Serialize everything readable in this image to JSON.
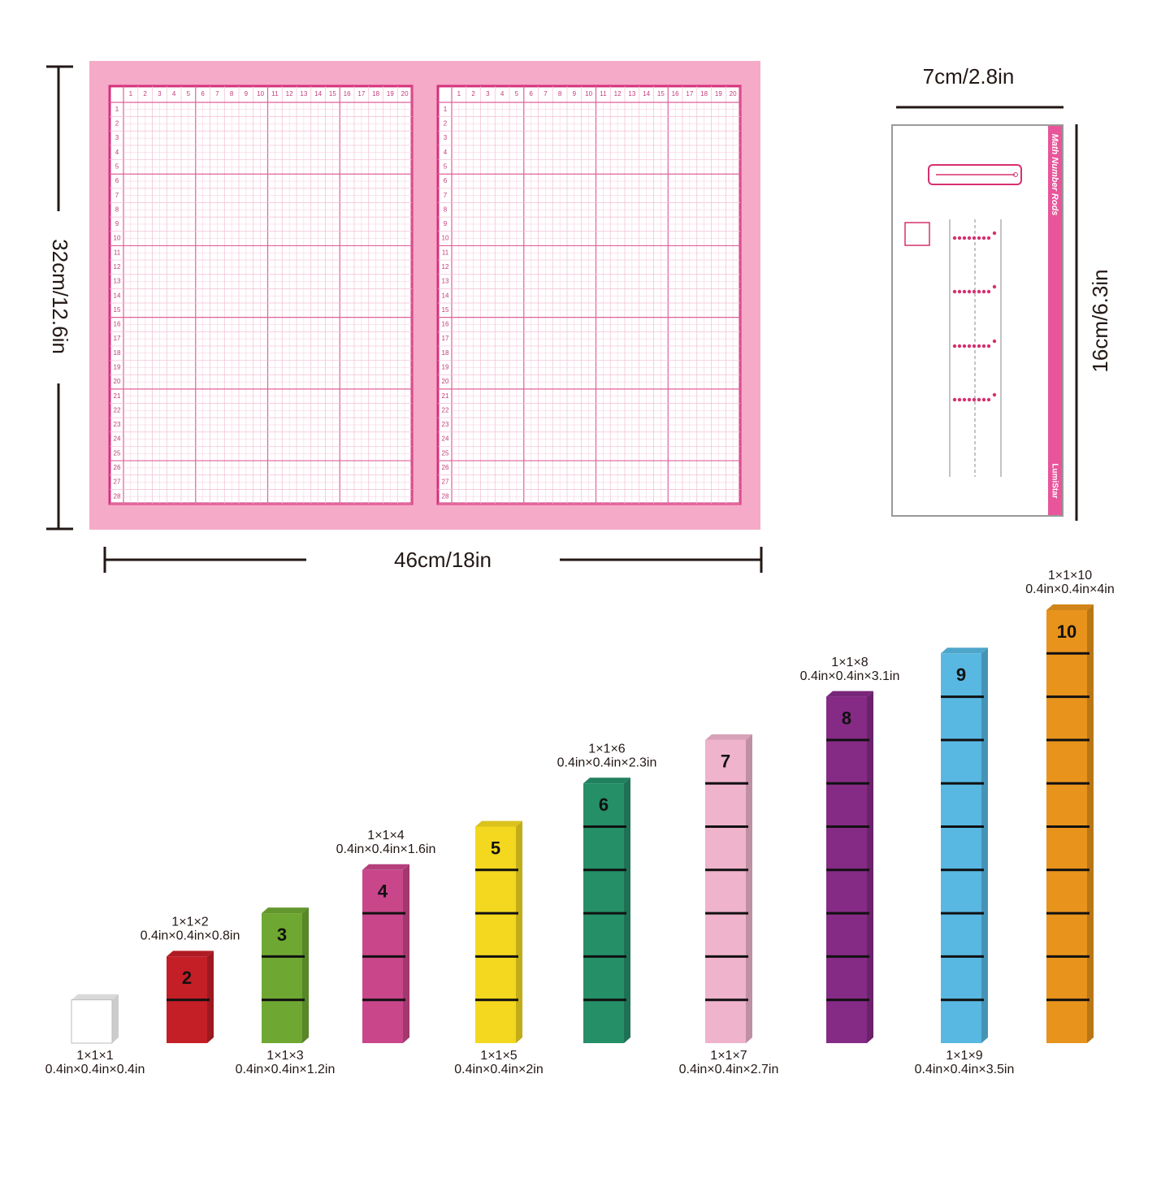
{
  "mat": {
    "width_label": "46cm/18in",
    "height_label": "32cm/12.6in",
    "column_numbers": [
      1,
      2,
      3,
      4,
      5,
      6,
      7,
      8,
      9,
      10,
      11,
      12,
      13,
      14,
      15,
      16,
      17,
      18,
      19,
      20
    ],
    "row_numbers": [
      1,
      2,
      3,
      4,
      5,
      6,
      7,
      8,
      9,
      10,
      11,
      12,
      13,
      14,
      15,
      16,
      17,
      18,
      19,
      20,
      21,
      22,
      23,
      24,
      25,
      26,
      27,
      28
    ]
  },
  "card": {
    "width_label": "7cm/2.8in",
    "height_label": "16cm/6.3in",
    "title": "Math Number Rods",
    "brand": "LumiStar"
  },
  "rods": [
    {
      "units": "1×1×1",
      "size": "0.4in×0.4in×0.4in",
      "color": "#ffffff"
    },
    {
      "number": "2",
      "units": "1×1×2",
      "size": "0.4in×0.4in×0.8in",
      "color": "#c41f27"
    },
    {
      "number": "3",
      "units": "1×1×3",
      "size": "0.4in×0.4in×1.2in",
      "color": "#6ea832"
    },
    {
      "number": "4",
      "units": "1×1×4",
      "size": "0.4in×0.4in×1.6in",
      "color": "#c9468a"
    },
    {
      "number": "5",
      "units": "1×1×5",
      "size": "0.4in×0.4in×2in",
      "color": "#f3d81f"
    },
    {
      "number": "6",
      "units": "1×1×6",
      "size": "0.4in×0.4in×2.3in",
      "color": "#258f68"
    },
    {
      "number": "7",
      "units": "1×1×7",
      "size": "0.4in×0.4in×2.7in",
      "color": "#efb3cb"
    },
    {
      "number": "8",
      "units": "1×1×8",
      "size": "0.4in×0.4in×3.1in",
      "color": "#852b85"
    },
    {
      "number": "9",
      "units": "1×1×9",
      "size": "0.4in×0.4in×3.5in",
      "color": "#58b8e2"
    },
    {
      "number": "10",
      "units": "1×1×10",
      "size": "0.4in×0.4in×4in",
      "color": "#e8931c"
    }
  ]
}
